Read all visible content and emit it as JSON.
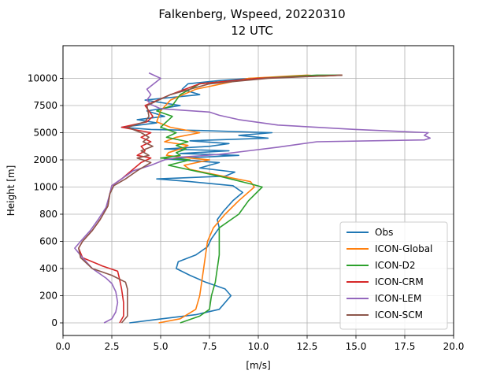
{
  "chart_data": {
    "type": "line",
    "title": "Falkenberg, Wspeed, 20220310",
    "subtitle": "12 UTC",
    "xlabel": "[m/s]",
    "ylabel": "Height [m]",
    "xlim": [
      0,
      20
    ],
    "x_ticks": [
      "0.0",
      "2.5",
      "5.0",
      "7.5",
      "10.0",
      "12.5",
      "15.0",
      "17.5",
      "20.0"
    ],
    "y_ticks": [
      {
        "value": 0,
        "label": "0"
      },
      {
        "value": 200,
        "label": "200"
      },
      {
        "value": 400,
        "label": "400"
      },
      {
        "value": 600,
        "label": "600"
      },
      {
        "value": 800,
        "label": "800"
      },
      {
        "value": 1000,
        "label": "1000"
      },
      {
        "value": 2000,
        "label": "2000"
      },
      {
        "value": 5000,
        "label": "5000"
      },
      {
        "value": 7500,
        "label": "7500"
      },
      {
        "value": 10000,
        "label": "10000"
      }
    ],
    "grid": true,
    "legend_position": "lower-right",
    "series": [
      {
        "name": "Obs",
        "color": "#1f77b4",
        "points": [
          [
            3.4,
            0
          ],
          [
            4.5,
            20
          ],
          [
            6.8,
            60
          ],
          [
            8.0,
            100
          ],
          [
            8.6,
            200
          ],
          [
            8.3,
            250
          ],
          [
            7.3,
            300
          ],
          [
            6.5,
            350
          ],
          [
            5.8,
            400
          ],
          [
            5.9,
            450
          ],
          [
            6.8,
            500
          ],
          [
            7.4,
            560
          ],
          [
            7.6,
            620
          ],
          [
            8.0,
            700
          ],
          [
            7.9,
            760
          ],
          [
            8.2,
            820
          ],
          [
            8.7,
            900
          ],
          [
            9.2,
            960
          ],
          [
            8.7,
            1050
          ],
          [
            6.5,
            1200
          ],
          [
            4.8,
            1300
          ],
          [
            8.3,
            1400
          ],
          [
            8.8,
            1550
          ],
          [
            7.0,
            1700
          ],
          [
            8.0,
            1900
          ],
          [
            5.2,
            2100
          ],
          [
            9.0,
            2500
          ],
          [
            6.0,
            2700
          ],
          [
            8.5,
            3000
          ],
          [
            5.2,
            3200
          ],
          [
            7.5,
            3500
          ],
          [
            8.5,
            3800
          ],
          [
            6.5,
            4100
          ],
          [
            10.5,
            4400
          ],
          [
            9.0,
            4700
          ],
          [
            10.7,
            5000
          ],
          [
            7.0,
            5200
          ],
          [
            4.5,
            5300
          ],
          [
            3.0,
            5500
          ],
          [
            4.8,
            5900
          ],
          [
            3.8,
            6200
          ],
          [
            5.2,
            6500
          ],
          [
            4.3,
            7000
          ],
          [
            6.0,
            7500
          ],
          [
            4.2,
            8000
          ],
          [
            7.0,
            8500
          ],
          [
            6.1,
            9000
          ],
          [
            6.4,
            9500
          ],
          [
            8.0,
            9800
          ],
          [
            9.6,
            10000
          ],
          [
            12.0,
            10200
          ],
          [
            14.3,
            10300
          ]
        ]
      },
      {
        "name": "ICON-Global",
        "color": "#ff7f0e",
        "points": [
          [
            4.9,
            0
          ],
          [
            6.0,
            30
          ],
          [
            6.8,
            100
          ],
          [
            7.0,
            200
          ],
          [
            7.1,
            300
          ],
          [
            7.2,
            400
          ],
          [
            7.3,
            500
          ],
          [
            7.4,
            600
          ],
          [
            7.7,
            700
          ],
          [
            8.3,
            800
          ],
          [
            9.0,
            900
          ],
          [
            9.8,
            1000
          ],
          [
            9.7,
            1100
          ],
          [
            9.6,
            1200
          ],
          [
            7.5,
            1500
          ],
          [
            6.5,
            1650
          ],
          [
            6.2,
            1800
          ],
          [
            7.5,
            2000
          ],
          [
            6.5,
            2200
          ],
          [
            5.3,
            2500
          ],
          [
            5.4,
            2800
          ],
          [
            6.0,
            3200
          ],
          [
            6.4,
            3600
          ],
          [
            5.2,
            4000
          ],
          [
            5.8,
            4500
          ],
          [
            7.0,
            5000
          ],
          [
            5.5,
            5500
          ],
          [
            4.8,
            6000
          ],
          [
            5.0,
            7000
          ],
          [
            5.5,
            8000
          ],
          [
            6.8,
            9000
          ],
          [
            9.5,
            10000
          ],
          [
            12.5,
            10300
          ],
          [
            13.3,
            10200
          ],
          [
            14.3,
            10300
          ]
        ]
      },
      {
        "name": "ICON-D2",
        "color": "#2ca02c",
        "points": [
          [
            6.0,
            0
          ],
          [
            7.0,
            50
          ],
          [
            7.5,
            100
          ],
          [
            7.6,
            200
          ],
          [
            7.8,
            300
          ],
          [
            7.9,
            400
          ],
          [
            8.0,
            500
          ],
          [
            8.0,
            600
          ],
          [
            8.0,
            700
          ],
          [
            9.0,
            800
          ],
          [
            9.5,
            900
          ],
          [
            10.2,
            1000
          ],
          [
            9.7,
            1100
          ],
          [
            8.0,
            1400
          ],
          [
            6.7,
            1600
          ],
          [
            5.4,
            1800
          ],
          [
            6.5,
            2000
          ],
          [
            5.0,
            2200
          ],
          [
            6.0,
            2500
          ],
          [
            5.8,
            2800
          ],
          [
            6.3,
            3200
          ],
          [
            5.8,
            3600
          ],
          [
            6.4,
            4000
          ],
          [
            5.3,
            4500
          ],
          [
            5.8,
            5000
          ],
          [
            5.0,
            5500
          ],
          [
            5.3,
            6000
          ],
          [
            5.6,
            6500
          ],
          [
            4.8,
            7000
          ],
          [
            5.6,
            7500
          ],
          [
            6.0,
            8500
          ],
          [
            7.0,
            9500
          ],
          [
            10.0,
            10000
          ],
          [
            13.0,
            10300
          ],
          [
            14.3,
            10300
          ]
        ]
      },
      {
        "name": "ICON-CRM",
        "color": "#d62728",
        "points": [
          [
            2.9,
            0
          ],
          [
            3.1,
            50
          ],
          [
            3.1,
            150
          ],
          [
            3.0,
            250
          ],
          [
            2.9,
            320
          ],
          [
            2.8,
            380
          ],
          [
            2.0,
            420
          ],
          [
            1.0,
            480
          ],
          [
            0.8,
            550
          ],
          [
            1.0,
            600
          ],
          [
            1.5,
            680
          ],
          [
            1.9,
            760
          ],
          [
            2.3,
            860
          ],
          [
            2.4,
            950
          ],
          [
            2.5,
            1050
          ],
          [
            3.0,
            1300
          ],
          [
            3.5,
            1600
          ],
          [
            4.0,
            1900
          ],
          [
            4.5,
            2200
          ],
          [
            3.8,
            2500
          ],
          [
            4.2,
            3000
          ],
          [
            4.0,
            3500
          ],
          [
            4.5,
            4000
          ],
          [
            4.0,
            4500
          ],
          [
            4.5,
            5000
          ],
          [
            3.0,
            5500
          ],
          [
            4.3,
            6000
          ],
          [
            4.6,
            6500
          ],
          [
            4.2,
            7500
          ],
          [
            5.5,
            8500
          ],
          [
            7.0,
            9500
          ],
          [
            10.0,
            10000
          ],
          [
            14.3,
            10300
          ]
        ]
      },
      {
        "name": "ICON-LEM",
        "color": "#9467bd",
        "points": [
          [
            2.1,
            0
          ],
          [
            2.5,
            30
          ],
          [
            2.7,
            80
          ],
          [
            2.8,
            150
          ],
          [
            2.7,
            230
          ],
          [
            2.5,
            290
          ],
          [
            2.2,
            330
          ],
          [
            1.5,
            400
          ],
          [
            1.0,
            480
          ],
          [
            0.6,
            550
          ],
          [
            0.9,
            600
          ],
          [
            1.4,
            680
          ],
          [
            1.8,
            760
          ],
          [
            2.2,
            850
          ],
          [
            2.4,
            950
          ],
          [
            2.5,
            1050
          ],
          [
            3.0,
            1300
          ],
          [
            3.6,
            1600
          ],
          [
            4.5,
            1800
          ],
          [
            5.2,
            2000
          ],
          [
            6.0,
            2300
          ],
          [
            8.0,
            2600
          ],
          [
            9.5,
            3000
          ],
          [
            11.0,
            3400
          ],
          [
            13.0,
            4000
          ],
          [
            18.5,
            4200
          ],
          [
            18.8,
            4400
          ],
          [
            18.5,
            4700
          ],
          [
            18.7,
            5000
          ],
          [
            15.0,
            5300
          ],
          [
            11.0,
            5700
          ],
          [
            9.0,
            6200
          ],
          [
            8.0,
            6600
          ],
          [
            7.5,
            6900
          ],
          [
            5.0,
            7200
          ],
          [
            4.5,
            7600
          ],
          [
            4.3,
            8000
          ],
          [
            4.5,
            8500
          ],
          [
            4.3,
            9000
          ],
          [
            5.0,
            10000
          ],
          [
            4.4,
            10500
          ]
        ]
      },
      {
        "name": "ICON-SCM",
        "color": "#8c564b",
        "points": [
          [
            3.0,
            0
          ],
          [
            3.3,
            50
          ],
          [
            3.3,
            150
          ],
          [
            3.3,
            250
          ],
          [
            3.2,
            300
          ],
          [
            2.5,
            350
          ],
          [
            1.5,
            400
          ],
          [
            0.9,
            480
          ],
          [
            0.8,
            550
          ],
          [
            1.0,
            600
          ],
          [
            1.5,
            680
          ],
          [
            1.9,
            760
          ],
          [
            2.3,
            860
          ],
          [
            2.4,
            950
          ],
          [
            2.6,
            1050
          ],
          [
            3.2,
            1300
          ],
          [
            3.8,
            1600
          ],
          [
            4.5,
            1900
          ],
          [
            3.8,
            2200
          ],
          [
            4.4,
            2500
          ],
          [
            4.0,
            3000
          ],
          [
            4.6,
            3500
          ],
          [
            4.1,
            4000
          ],
          [
            4.4,
            4500
          ],
          [
            4.0,
            5000
          ],
          [
            3.3,
            5500
          ],
          [
            4.2,
            6000
          ],
          [
            4.4,
            6500
          ],
          [
            4.3,
            7500
          ],
          [
            5.5,
            8500
          ],
          [
            7.5,
            9500
          ],
          [
            10.5,
            10000
          ],
          [
            14.3,
            10300
          ]
        ]
      }
    ]
  }
}
